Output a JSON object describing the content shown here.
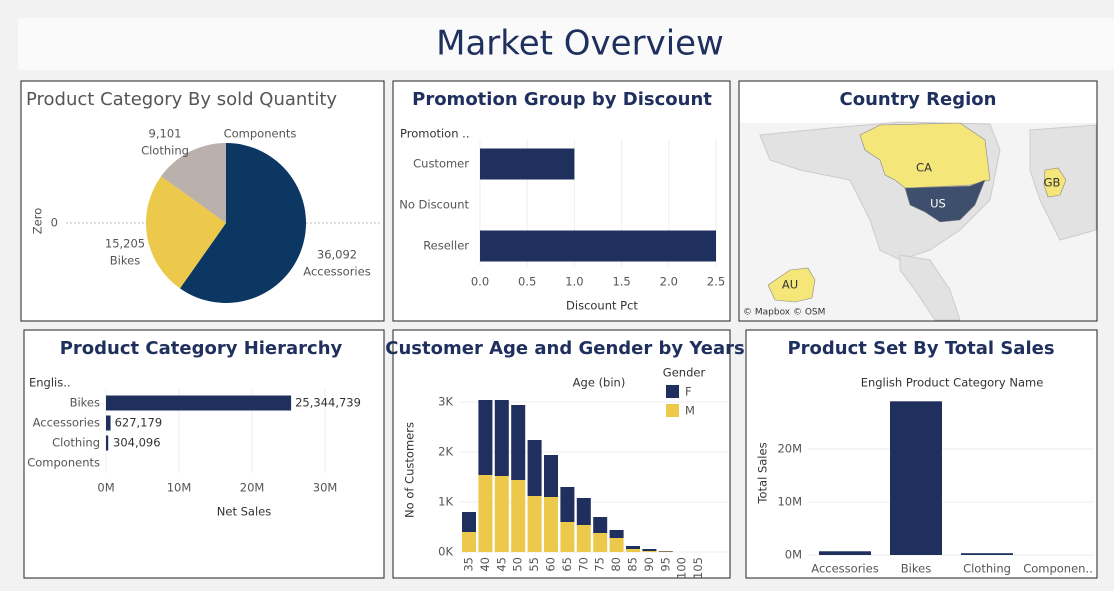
{
  "title": "Market Overview",
  "chart_data": [
    {
      "type": "pie",
      "title": "Product Category By sold Quantity",
      "y_label": "Zero",
      "ylim": [
        -1,
        1
      ],
      "yticks": [
        0
      ],
      "categories": [
        "Accessories",
        "Bikes",
        "Clothing",
        "Components"
      ],
      "values": [
        36092,
        15205,
        9101,
        0
      ],
      "value_labels": [
        "36,092",
        "15,205",
        "9,101",
        null
      ],
      "colors": [
        "#0c3763",
        "#ecc94b",
        "#bab0ac",
        "#7f7f7f"
      ]
    },
    {
      "type": "hbar",
      "title": "Promotion Group by Discount",
      "category_header": "Promotion ..",
      "categories": [
        "Customer",
        "No Discount",
        "Reseller"
      ],
      "values": [
        1.0,
        0,
        2.5
      ],
      "color": "#1f2f5e",
      "x_label": "Discount Pct",
      "xlim": [
        0,
        2.5
      ],
      "xticks": [
        {
          "value": 0,
          "label": "0.0"
        },
        0.5,
        {
          "value": 1,
          "label": "1.0"
        },
        1.5,
        {
          "value": 2,
          "label": "2.0"
        },
        2.5
      ],
      "grid": true
    },
    {
      "type": "map",
      "title": "Country Region",
      "attribution": "© Mapbox © OSM",
      "regions": [
        {
          "name": "CA",
          "color": "#f5e67a"
        },
        {
          "name": "US",
          "color": "#3e4f6e"
        },
        {
          "name": "GB",
          "color": "#f5e67a"
        },
        {
          "name": "AU",
          "color": "#f5e67a"
        }
      ]
    },
    {
      "type": "hbar",
      "title": "Product Category Hierarchy",
      "category_header": "Englis..",
      "categories": [
        "Bikes",
        "Accessories",
        "Clothing",
        "Components"
      ],
      "values": [
        25344739,
        627179,
        304096,
        0
      ],
      "value_labels": [
        "25,344,739",
        "627,179",
        "304,096",
        null
      ],
      "color": "#1f2f5e",
      "x_label": "Net Sales",
      "xlim": [
        0,
        33000000
      ],
      "xticks": [
        {
          "value": 0,
          "label": "0M"
        },
        {
          "value": 10000000,
          "label": "10M"
        },
        {
          "value": 20000000,
          "label": "20M"
        },
        {
          "value": 30000000,
          "label": "30M"
        }
      ],
      "grid": true
    },
    {
      "type": "stacked_bar",
      "title": "Customer Age and Gender by Years",
      "x_label": "Age (bin)",
      "y_label": "No of Customers",
      "legend_title": "Gender",
      "categories": [
        "35",
        "40",
        "45",
        "50",
        "55",
        "60",
        "65",
        "70",
        "75",
        "80",
        "85",
        "90",
        "95",
        "100",
        "105"
      ],
      "series": [
        {
          "name": "F",
          "color": "#1f2f5e",
          "values": [
            400,
            1500,
            1520,
            1500,
            1120,
            840,
            700,
            540,
            320,
            160,
            60,
            40,
            10,
            0,
            0
          ]
        },
        {
          "name": "M",
          "color": "#ecc94b",
          "values": [
            400,
            1540,
            1520,
            1440,
            1120,
            1100,
            600,
            540,
            380,
            280,
            60,
            20,
            10,
            0,
            0
          ]
        }
      ],
      "ylim": [
        0,
        3200
      ],
      "yticks": [
        {
          "value": 0,
          "label": "0K"
        },
        {
          "value": 1000,
          "label": "1K"
        },
        {
          "value": 2000,
          "label": "2K"
        },
        {
          "value": 3000,
          "label": "3K"
        }
      ],
      "grid": true
    },
    {
      "type": "bar",
      "title": "Product Set By Total Sales",
      "subtitle": "English Product Category Name",
      "y_label": "Total Sales",
      "categories": [
        "Accessories",
        "Bikes",
        "Clothing",
        "Componen.."
      ],
      "values": [
        700000,
        29000000,
        340000,
        0
      ],
      "color": "#1f2f5e",
      "ylim": [
        0,
        30000000
      ],
      "yticks": [
        {
          "value": 0,
          "label": "0M"
        },
        {
          "value": 10000000,
          "label": "10M"
        },
        {
          "value": 20000000,
          "label": "20M"
        }
      ],
      "grid": true
    }
  ]
}
